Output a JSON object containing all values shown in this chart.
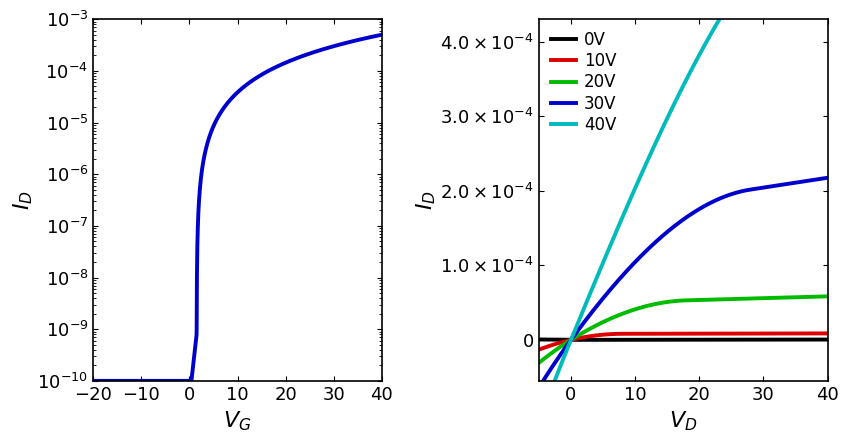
{
  "left_plot": {
    "xlabel": "$V_G$",
    "ylabel": "$I_D$",
    "xlim": [
      -20,
      40
    ],
    "ylim_log": [
      1e-10,
      0.001
    ],
    "xticks": [
      -20,
      -10,
      0,
      10,
      20,
      30,
      40
    ],
    "line_color": "#0000CC",
    "line_width": 2.8,
    "Vth": 1.5,
    "Ion": 0.0005,
    "Ioff": 8e-10,
    "SS_volt_per_dec": 1.2
  },
  "right_plot": {
    "xlabel": "$V_D$",
    "ylabel": "$I_D$",
    "xlim": [
      -5,
      40
    ],
    "ylim": [
      -5.5e-05,
      0.00043
    ],
    "yticks": [
      0.0,
      0.0001,
      0.0002,
      0.0003,
      0.0004
    ],
    "xticks": [
      0,
      10,
      20,
      30,
      40
    ],
    "curves": [
      {
        "VG": 0,
        "color": "#000000",
        "label": "0V",
        "K": 2.5e-07,
        "Vth": 2.0,
        "lam": 0.002
      },
      {
        "VG": 10,
        "color": "#DD0000",
        "label": "10V",
        "K": 2.5e-07,
        "Vth": 2.0,
        "lam": 0.002
      },
      {
        "VG": 20,
        "color": "#00BB00",
        "label": "20V",
        "K": 3e-07,
        "Vth": 2.0,
        "lam": 0.005
      },
      {
        "VG": 30,
        "color": "#0000CC",
        "label": "30V",
        "K": 4.2e-07,
        "Vth": 2.0,
        "lam": 0.008
      },
      {
        "VG": 40,
        "color": "#00BBBB",
        "label": "40V",
        "K": 5.5e-07,
        "Vth": 2.0,
        "lam": 0.012
      }
    ],
    "line_width": 2.8
  },
  "background_color": "#ffffff",
  "tick_direction": "in",
  "font_size": 13,
  "label_font_size": 16
}
